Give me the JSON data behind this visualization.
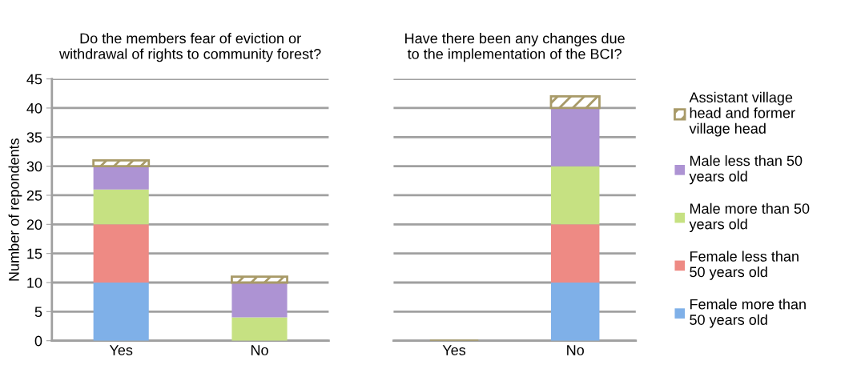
{
  "chart_data": [
    {
      "type": "bar",
      "title": "Do the members fear of eviction or\nwithdrawal of rights to community forest?",
      "ylabel": "Number of repondents",
      "categories": [
        "Yes",
        "No"
      ],
      "stacked": true,
      "ylim": [
        0,
        45
      ],
      "yticks": [
        0,
        5,
        10,
        15,
        20,
        25,
        30,
        35,
        40,
        45
      ],
      "grid": "y",
      "legend": "right",
      "series": [
        {
          "name": "Female more than\n50 years old",
          "color": "#7fb0e8",
          "values": [
            10,
            0
          ]
        },
        {
          "name": "Female less than\n50 years old",
          "color": "#ee8a84",
          "values": [
            10,
            0
          ]
        },
        {
          "name": "Male more than 50\nyears old",
          "color": "#c6e182",
          "values": [
            6,
            4
          ]
        },
        {
          "name": "Male less than 50\nyears old",
          "color": "#ad93d3",
          "values": [
            4,
            6
          ]
        },
        {
          "name": "Assistant village\nhead and former\nvillage head",
          "color": "#a89a68",
          "values": [
            1,
            1
          ]
        }
      ]
    },
    {
      "type": "bar",
      "title": "Have there been any changes due\nto the implementation of the BCI?",
      "categories": [
        "Yes",
        "No"
      ],
      "stacked": true,
      "ylim": [
        0,
        45
      ],
      "yticks": [
        0,
        5,
        10,
        15,
        20,
        25,
        30,
        35,
        40,
        45
      ],
      "grid": "y",
      "tick_labels": "x",
      "series": [
        {
          "color": "#7fb0e8",
          "values": [
            0,
            10
          ]
        },
        {
          "color": "#ee8a84",
          "values": [
            0,
            10
          ]
        },
        {
          "color": "#c6e182",
          "values": [
            0,
            10
          ]
        },
        {
          "color": "#ad93d3",
          "values": [
            0,
            10
          ]
        },
        {
          "color": "#a89a68",
          "values": [
            0,
            2
          ]
        }
      ]
    }
  ]
}
